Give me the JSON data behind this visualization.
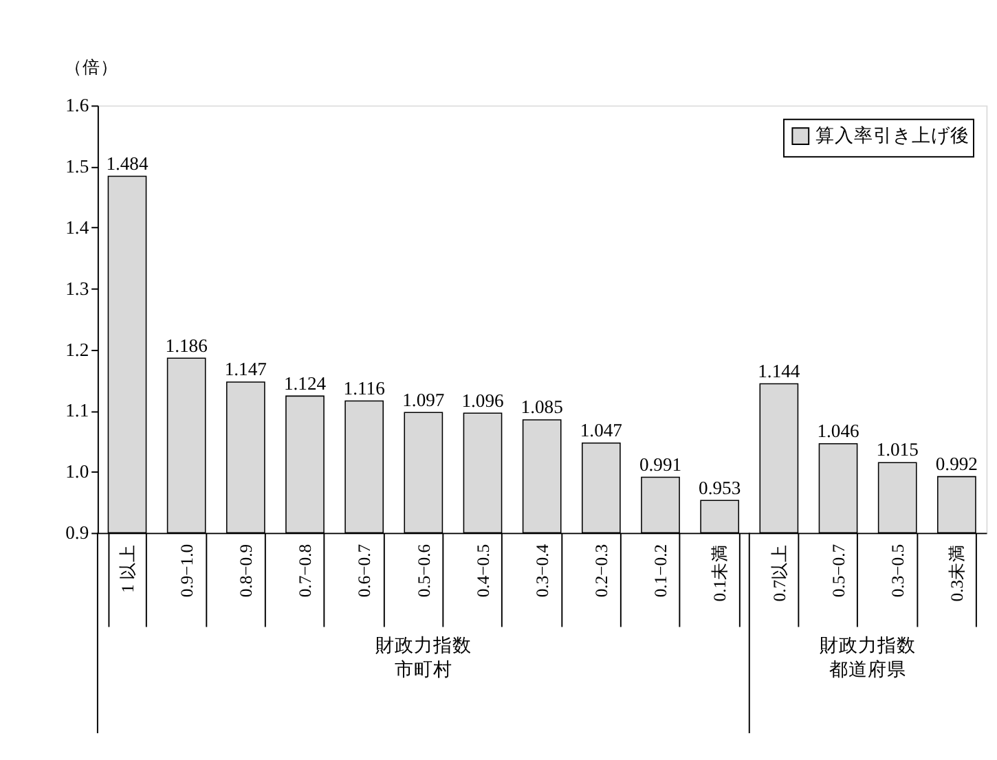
{
  "chart_data": {
    "type": "bar",
    "ylabel": "（倍）",
    "categories": [
      "1 以上",
      "0.9−1.0",
      "0.8−0.9",
      "0.7−0.8",
      "0.6−0.7",
      "0.5−0.6",
      "0.4−0.5",
      "0.3−0.4",
      "0.2−0.3",
      "0.1−0.2",
      "0.1未満",
      "0.7以上",
      "0.5−0.7",
      "0.3−0.5",
      "0.3未満"
    ],
    "series": [
      {
        "name": "算入率引き上げ後",
        "color": "#d9d9d9",
        "values": [
          1.484,
          1.186,
          1.147,
          1.124,
          1.116,
          1.097,
          1.096,
          1.085,
          1.047,
          0.991,
          0.953,
          1.144,
          1.046,
          1.015,
          0.992
        ]
      }
    ],
    "ylim": [
      0.9,
      1.6
    ],
    "yticks": [
      0.9,
      {
        "value": 1,
        "label": "1.0"
      },
      1.1,
      1.2,
      1.3,
      1.4,
      1.5,
      1.6
    ],
    "data_labels": true,
    "legend": "top right",
    "grid": false,
    "annotations": [
      "財政力指数",
      "市町村",
      "財政力指数",
      "都道府県"
    ]
  }
}
